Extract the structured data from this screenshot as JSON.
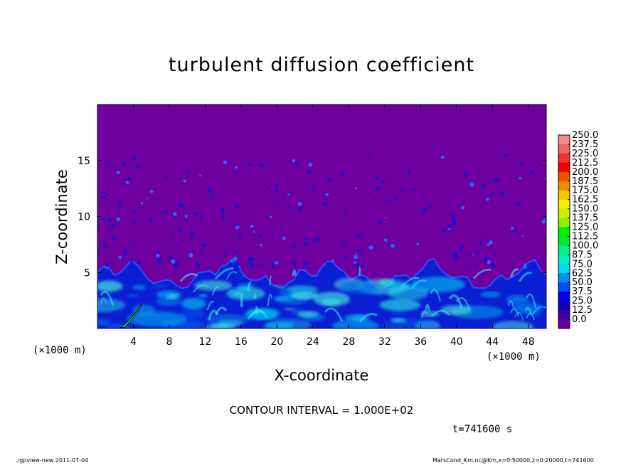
{
  "chart_data": {
    "type": "heatmap",
    "title": "turbulent diffusion coefficient",
    "xlabel": "X-coordinate",
    "ylabel": "Z-coordinate",
    "x_unit": "(×1000 m)",
    "y_unit": "(×1000 m)",
    "xlim": [
      0,
      50
    ],
    "ylim": [
      0,
      20
    ],
    "x_ticks": [
      "4",
      "8",
      "12",
      "16",
      "20",
      "24",
      "28",
      "32",
      "36",
      "40",
      "44",
      "48"
    ],
    "y_ticks": [
      "5",
      "10",
      "15"
    ],
    "colorbar": {
      "levels": [
        "250.0",
        "237.5",
        "225.0",
        "212.5",
        "200.0",
        "187.5",
        "175.0",
        "162.5",
        "150.0",
        "137.5",
        "125.0",
        "112.5",
        "100.0",
        "87.5",
        "75.0",
        "62.5",
        "50.0",
        "37.5",
        "25.0",
        "12.5",
        "0.0"
      ],
      "colors": [
        "#f08c8c",
        "#f06464",
        "#f03232",
        "#f00000",
        "#f05000",
        "#f08c00",
        "#f0c800",
        "#f0f000",
        "#c8f000",
        "#8cf000",
        "#00f000",
        "#00e632",
        "#00f08c",
        "#00f0c8",
        "#00dcf0",
        "#008cf0",
        "#0050f0",
        "#0000f0",
        "#1400b4",
        "#3c00a0",
        "#6400a0"
      ]
    },
    "background_value_color": "#6e00a0",
    "contour_interval": "CONTOUR INTERVAL = 1.000E+02",
    "time": "t=741600 s"
  },
  "footer": {
    "left": "./gpview-new   2011-07-04",
    "right": "MarsCond_Km.nc@Km,x=0:50000,z=0:20000,t=741600"
  }
}
